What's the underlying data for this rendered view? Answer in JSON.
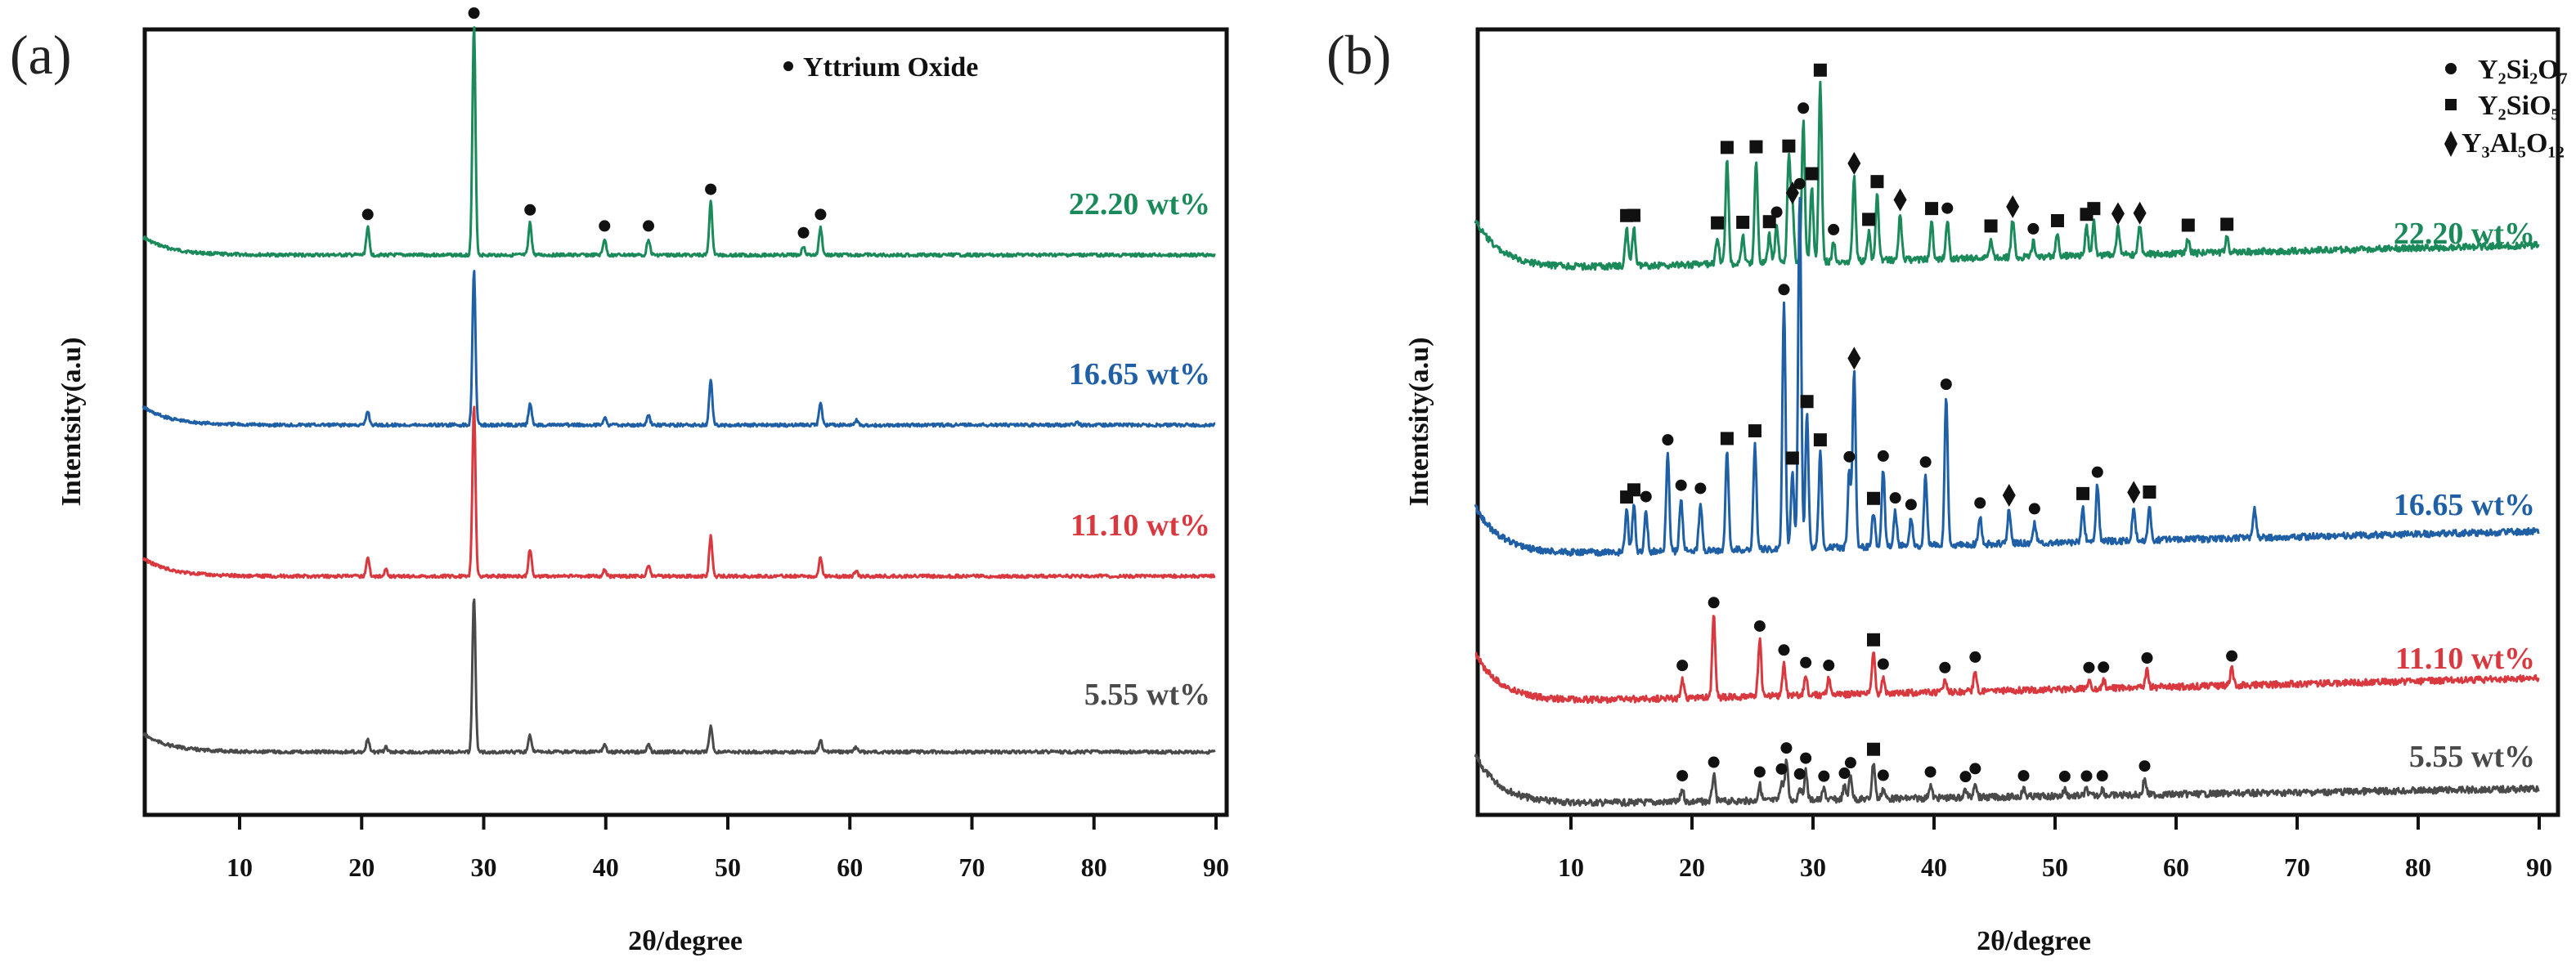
{
  "chart_data": [
    {
      "panel": "(a)",
      "type": "line",
      "title": "",
      "xlabel": "2θ/degree",
      "ylabel": "Intentsity(a.u)",
      "xlim": [
        2,
        90
      ],
      "xticks": [
        10,
        20,
        30,
        40,
        50,
        60,
        70,
        80,
        90
      ],
      "yticks": [],
      "grid": false,
      "stacked_offset": true,
      "legend": {
        "placement": "top-right",
        "entries": [
          {
            "marker": "circle",
            "label": "Yttrium Oxide"
          }
        ]
      },
      "series": [
        {
          "name": "22.20 wt%",
          "color": "#1a8a5a",
          "peaks": [
            {
              "x": 20.5,
              "height": 0.12,
              "marker": "circle"
            },
            {
              "x": 29.2,
              "height": 1.0,
              "marker": "circle"
            },
            {
              "x": 33.8,
              "height": 0.14,
              "marker": "circle"
            },
            {
              "x": 39.9,
              "height": 0.07,
              "marker": "circle"
            },
            {
              "x": 43.5,
              "height": 0.07,
              "marker": "circle"
            },
            {
              "x": 48.6,
              "height": 0.23,
              "marker": "circle"
            },
            {
              "x": 56.2,
              "height": 0.04,
              "marker": "circle"
            },
            {
              "x": 57.6,
              "height": 0.12,
              "marker": "circle"
            }
          ]
        },
        {
          "name": "16.65 wt%",
          "color": "#1f5fa6",
          "peaks": [
            {
              "x": 20.5,
              "height": 0.09
            },
            {
              "x": 29.2,
              "height": 1.0
            },
            {
              "x": 33.8,
              "height": 0.14
            },
            {
              "x": 39.9,
              "height": 0.05
            },
            {
              "x": 43.5,
              "height": 0.06
            },
            {
              "x": 48.6,
              "height": 0.29
            },
            {
              "x": 57.6,
              "height": 0.14
            },
            {
              "x": 60.5,
              "height": 0.03
            },
            {
              "x": 78.6,
              "height": 0.02
            }
          ]
        },
        {
          "name": "11.10 wt%",
          "color": "#d9383f",
          "peaks": [
            {
              "x": 20.5,
              "height": 0.11
            },
            {
              "x": 22.0,
              "height": 0.04
            },
            {
              "x": 29.2,
              "height": 1.0
            },
            {
              "x": 33.8,
              "height": 0.16
            },
            {
              "x": 39.9,
              "height": 0.04
            },
            {
              "x": 43.5,
              "height": 0.06
            },
            {
              "x": 48.6,
              "height": 0.23
            },
            {
              "x": 57.6,
              "height": 0.11
            },
            {
              "x": 60.5,
              "height": 0.03
            }
          ]
        },
        {
          "name": "5.55 wt%",
          "color": "#4a4a4a",
          "peaks": [
            {
              "x": 20.5,
              "height": 0.08
            },
            {
              "x": 22.0,
              "height": 0.03
            },
            {
              "x": 29.2,
              "height": 1.0
            },
            {
              "x": 33.8,
              "height": 0.11
            },
            {
              "x": 39.9,
              "height": 0.05
            },
            {
              "x": 43.5,
              "height": 0.05
            },
            {
              "x": 48.6,
              "height": 0.17
            },
            {
              "x": 57.6,
              "height": 0.08
            },
            {
              "x": 60.5,
              "height": 0.03
            }
          ]
        }
      ]
    },
    {
      "panel": "(b)",
      "type": "line",
      "title": "",
      "xlabel": "2θ/degree",
      "ylabel": "Intentsity(a.u)",
      "xlim": [
        2,
        90
      ],
      "xticks": [
        10,
        20,
        30,
        40,
        50,
        60,
        70,
        80,
        90
      ],
      "yticks": [],
      "grid": false,
      "stacked_offset": true,
      "legend": {
        "placement": "top-right",
        "entries": [
          {
            "marker": "circle",
            "label": "Y₂Si₂O₇"
          },
          {
            "marker": "square",
            "label": "Y₂SiO₅"
          },
          {
            "marker": "diamond",
            "label": "Y₃Al₅O₁₂"
          }
        ]
      },
      "series": [
        {
          "name": "22.20 wt%",
          "color": "#1a8a5a",
          "peaks": [
            {
              "x": 14.6,
              "height": 0.2,
              "marker": "square"
            },
            {
              "x": 15.2,
              "height": 0.2,
              "marker": "square"
            },
            {
              "x": 22.1,
              "height": 0.15,
              "marker": "square"
            },
            {
              "x": 22.9,
              "height": 0.55,
              "marker": "square"
            },
            {
              "x": 24.2,
              "height": 0.15,
              "marker": "square"
            },
            {
              "x": 25.3,
              "height": 0.55,
              "marker": "square"
            },
            {
              "x": 26.4,
              "height": 0.15,
              "marker": "square"
            },
            {
              "x": 27.0,
              "height": 0.2,
              "marker": "circle"
            },
            {
              "x": 28.0,
              "height": 0.55,
              "marker": "square"
            },
            {
              "x": 28.3,
              "height": 0.3,
              "marker": "diamond"
            },
            {
              "x": 29.2,
              "height": 0.75,
              "marker": "circle"
            },
            {
              "x": 29.9,
              "height": 0.4,
              "marker": "square"
            },
            {
              "x": 30.6,
              "height": 0.95,
              "marker": "square"
            },
            {
              "x": 31.7,
              "height": 0.1,
              "marker": "circle"
            },
            {
              "x": 33.4,
              "height": 0.45,
              "marker": "diamond"
            },
            {
              "x": 34.6,
              "height": 0.15,
              "marker": "square"
            },
            {
              "x": 35.3,
              "height": 0.35,
              "marker": "square"
            },
            {
              "x": 37.2,
              "height": 0.25,
              "marker": "diamond"
            },
            {
              "x": 39.8,
              "height": 0.2,
              "marker": "square"
            },
            {
              "x": 41.1,
              "height": 0.2,
              "marker": "circle"
            },
            {
              "x": 44.7,
              "height": 0.1,
              "marker": "square"
            },
            {
              "x": 46.5,
              "height": 0.2,
              "marker": "diamond"
            },
            {
              "x": 48.2,
              "height": 0.08,
              "marker": "circle"
            },
            {
              "x": 50.2,
              "height": 0.12,
              "marker": "square"
            },
            {
              "x": 52.6,
              "height": 0.15,
              "marker": "square"
            },
            {
              "x": 53.2,
              "height": 0.18,
              "marker": "square"
            },
            {
              "x": 55.2,
              "height": 0.15,
              "marker": "diamond"
            },
            {
              "x": 57.0,
              "height": 0.15,
              "marker": "diamond"
            },
            {
              "x": 61.0,
              "height": 0.08,
              "marker": "square"
            },
            {
              "x": 64.2,
              "height": 0.08,
              "marker": "square"
            }
          ]
        },
        {
          "name": "16.65 wt%",
          "color": "#1f5fa6",
          "peaks": [
            {
              "x": 14.6,
              "height": 0.12,
              "marker": "square"
            },
            {
              "x": 15.2,
              "height": 0.14,
              "marker": "square"
            },
            {
              "x": 16.2,
              "height": 0.12,
              "marker": "circle"
            },
            {
              "x": 18.0,
              "height": 0.28,
              "marker": "circle"
            },
            {
              "x": 19.1,
              "height": 0.15,
              "marker": "circle"
            },
            {
              "x": 20.7,
              "height": 0.14,
              "marker": "circle"
            },
            {
              "x": 22.9,
              "height": 0.28,
              "marker": "square"
            },
            {
              "x": 25.2,
              "height": 0.3,
              "marker": "square"
            },
            {
              "x": 27.6,
              "height": 0.7,
              "marker": "circle"
            },
            {
              "x": 28.3,
              "height": 0.22,
              "marker": "square"
            },
            {
              "x": 28.9,
              "height": 1.0,
              "marker": "circle"
            },
            {
              "x": 29.5,
              "height": 0.38,
              "marker": "square"
            },
            {
              "x": 30.6,
              "height": 0.27,
              "marker": "square"
            },
            {
              "x": 33.0,
              "height": 0.22,
              "marker": "circle"
            },
            {
              "x": 33.4,
              "height": 0.5,
              "marker": "diamond"
            },
            {
              "x": 35.0,
              "height": 0.1,
              "marker": "square"
            },
            {
              "x": 35.8,
              "height": 0.22,
              "marker": "circle"
            },
            {
              "x": 36.8,
              "height": 0.1,
              "marker": "circle"
            },
            {
              "x": 38.1,
              "height": 0.08,
              "marker": "circle"
            },
            {
              "x": 39.3,
              "height": 0.2,
              "marker": "circle"
            },
            {
              "x": 41.0,
              "height": 0.42,
              "marker": "circle"
            },
            {
              "x": 43.8,
              "height": 0.08,
              "marker": "circle"
            },
            {
              "x": 46.2,
              "height": 0.1,
              "marker": "diamond"
            },
            {
              "x": 48.3,
              "height": 0.06,
              "marker": "circle"
            },
            {
              "x": 52.3,
              "height": 0.1,
              "marker": "square"
            },
            {
              "x": 53.5,
              "height": 0.16,
              "marker": "circle"
            },
            {
              "x": 56.5,
              "height": 0.1,
              "marker": "diamond"
            },
            {
              "x": 57.8,
              "height": 0.1,
              "marker": "square"
            },
            {
              "x": 66.5,
              "height": 0.08
            }
          ]
        },
        {
          "name": "11.10 wt%",
          "color": "#d9383f",
          "peaks": [
            {
              "x": 19.2,
              "height": 0.12,
              "marker": "circle"
            },
            {
              "x": 21.8,
              "height": 0.5,
              "marker": "circle"
            },
            {
              "x": 25.6,
              "height": 0.35,
              "marker": "circle"
            },
            {
              "x": 27.6,
              "height": 0.2,
              "marker": "circle"
            },
            {
              "x": 29.4,
              "height": 0.12,
              "marker": "circle"
            },
            {
              "x": 31.3,
              "height": 0.1,
              "marker": "circle"
            },
            {
              "x": 35.0,
              "height": 0.25,
              "marker": "square"
            },
            {
              "x": 35.8,
              "height": 0.1,
              "marker": "circle"
            },
            {
              "x": 40.9,
              "height": 0.07,
              "marker": "circle"
            },
            {
              "x": 43.4,
              "height": 0.13,
              "marker": "circle"
            },
            {
              "x": 52.8,
              "height": 0.05,
              "marker": "circle"
            },
            {
              "x": 54.0,
              "height": 0.05,
              "marker": "circle"
            },
            {
              "x": 57.6,
              "height": 0.1,
              "marker": "circle"
            },
            {
              "x": 64.6,
              "height": 0.1,
              "marker": "circle"
            }
          ]
        },
        {
          "name": "5.55 wt%",
          "color": "#4a4a4a",
          "peaks": [
            {
              "x": 19.2,
              "height": 0.1,
              "marker": "circle"
            },
            {
              "x": 21.8,
              "height": 0.2,
              "marker": "circle"
            },
            {
              "x": 25.6,
              "height": 0.12,
              "marker": "circle"
            },
            {
              "x": 27.4,
              "height": 0.14,
              "marker": "circle"
            },
            {
              "x": 27.8,
              "height": 0.3,
              "marker": "circle"
            },
            {
              "x": 28.9,
              "height": 0.1,
              "marker": "circle"
            },
            {
              "x": 29.4,
              "height": 0.22,
              "marker": "circle"
            },
            {
              "x": 30.9,
              "height": 0.08,
              "marker": "circle"
            },
            {
              "x": 32.6,
              "height": 0.1,
              "marker": "circle"
            },
            {
              "x": 33.1,
              "height": 0.18,
              "marker": "circle"
            },
            {
              "x": 35.0,
              "height": 0.28,
              "marker": "square"
            },
            {
              "x": 35.8,
              "height": 0.08,
              "marker": "circle"
            },
            {
              "x": 39.7,
              "height": 0.1,
              "marker": "circle"
            },
            {
              "x": 42.6,
              "height": 0.06,
              "marker": "circle"
            },
            {
              "x": 43.4,
              "height": 0.12,
              "marker": "circle"
            },
            {
              "x": 47.4,
              "height": 0.06,
              "marker": "circle"
            },
            {
              "x": 50.8,
              "height": 0.05,
              "marker": "circle"
            },
            {
              "x": 52.6,
              "height": 0.05,
              "marker": "circle"
            },
            {
              "x": 53.9,
              "height": 0.05,
              "marker": "circle"
            },
            {
              "x": 57.4,
              "height": 0.12,
              "marker": "circle"
            }
          ]
        }
      ]
    }
  ]
}
